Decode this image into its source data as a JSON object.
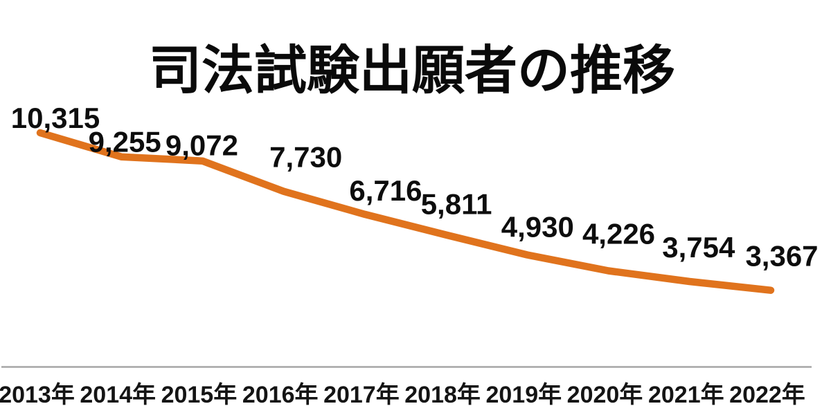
{
  "page": {
    "background": "#ffffff"
  },
  "chart_data": {
    "type": "line",
    "title": "司法試験出願者の推移",
    "categories": [
      "2013年",
      "2014年",
      "2015年",
      "2016年",
      "2017年",
      "2018年",
      "2019年",
      "2020年",
      "2021年",
      "2022年"
    ],
    "values": [
      10315,
      9255,
      9072,
      7730,
      6716,
      5811,
      4930,
      4226,
      3754,
      3367
    ],
    "data_labels": [
      "10,315",
      "9,255",
      "9,072",
      "7,730",
      "6,716",
      "5,811",
      "4,930",
      "4,226",
      "3,754",
      "3,367"
    ],
    "xlabel": "",
    "ylabel": "",
    "ylim": [
      0,
      10400
    ],
    "grid": false,
    "legend": "none",
    "line_color": "#e0731d",
    "axis_color": "#a6a6a6",
    "text_color": "#0d0d0d",
    "title_color": "#0a0a0a"
  }
}
